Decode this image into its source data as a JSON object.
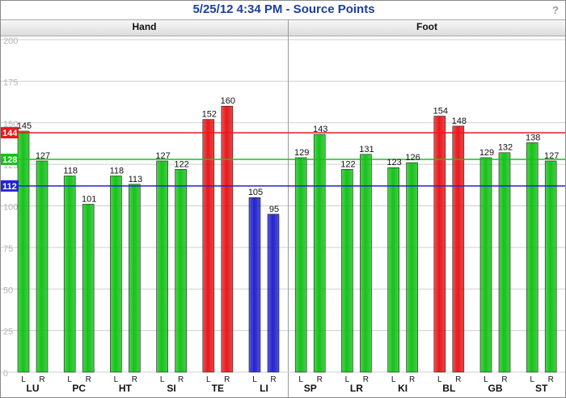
{
  "title": "5/25/12 4:34 PM - Source Points",
  "help_label": "?",
  "groups": [
    "Hand",
    "Foot"
  ],
  "colors": {
    "high": "#e8191c",
    "normal": "#17c21a",
    "low": "#2424d0",
    "title": "#1c3f9a",
    "grid": "#cfcfcf"
  },
  "reference_lines": [
    {
      "label": "144",
      "value": 144,
      "color": "#e8191c"
    },
    {
      "label": "128",
      "value": 128,
      "color": "#17c21a"
    },
    {
      "label": "112",
      "value": 112,
      "color": "#2424d0"
    }
  ],
  "chart_data": {
    "type": "bar",
    "title": "5/25/12 4:34 PM - Source Points",
    "ylim": [
      0,
      200
    ],
    "yticks": [
      0,
      25,
      50,
      75,
      100,
      125,
      150,
      175,
      200
    ],
    "grid": true,
    "categories": [
      "LU",
      "PC",
      "HT",
      "SI",
      "TE",
      "LI",
      "SP",
      "LR",
      "KI",
      "BL",
      "GB",
      "ST"
    ],
    "category_groups": [
      "Hand",
      "Hand",
      "Hand",
      "Hand",
      "Hand",
      "Hand",
      "Foot",
      "Foot",
      "Foot",
      "Foot",
      "Foot",
      "Foot"
    ],
    "series": [
      {
        "name": "L",
        "values": [
          145,
          118,
          118,
          127,
          152,
          105,
          129,
          122,
          123,
          154,
          129,
          138
        ],
        "colors": [
          "normal",
          "normal",
          "normal",
          "normal",
          "high",
          "low",
          "normal",
          "normal",
          "normal",
          "high",
          "normal",
          "normal"
        ]
      },
      {
        "name": "R",
        "values": [
          127,
          101,
          113,
          122,
          160,
          95,
          143,
          131,
          126,
          148,
          132,
          127
        ],
        "colors": [
          "normal",
          "normal",
          "normal",
          "normal",
          "high",
          "low",
          "normal",
          "normal",
          "normal",
          "high",
          "normal",
          "normal"
        ]
      }
    ]
  }
}
